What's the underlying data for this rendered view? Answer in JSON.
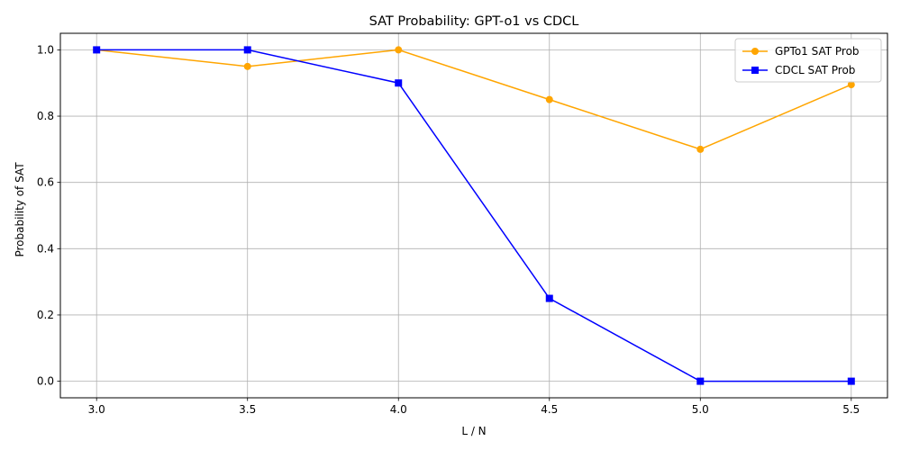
{
  "chart_data": {
    "type": "line",
    "title": "SAT Probability: GPT-o1 vs CDCL",
    "xlabel": "L / N",
    "ylabel": "Probability of SAT",
    "x": [
      3.0,
      3.5,
      4.0,
      4.5,
      5.0,
      5.5
    ],
    "x_tick_labels": [
      "3.0",
      "3.5",
      "4.0",
      "4.5",
      "5.0",
      "5.5"
    ],
    "y_tick_labels": [
      "0.0",
      "0.2",
      "0.4",
      "0.6",
      "0.8",
      "1.0"
    ],
    "xlim": [
      2.88,
      5.62
    ],
    "ylim": [
      -0.05,
      1.05
    ],
    "grid": true,
    "legend_position": "top-right",
    "series": [
      {
        "name": "GPTo1 SAT Prob",
        "color": "#FFA500",
        "marker": "circle",
        "values": [
          1.0,
          0.95,
          1.0,
          0.85,
          0.7,
          0.895
        ]
      },
      {
        "name": "CDCL SAT Prob",
        "color": "#0000FF",
        "marker": "square",
        "values": [
          1.0,
          1.0,
          0.9,
          0.25,
          0.0,
          0.0
        ]
      }
    ]
  }
}
